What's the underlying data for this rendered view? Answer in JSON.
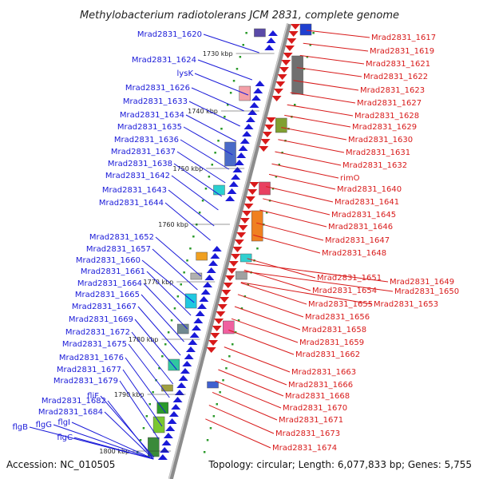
{
  "title": "Methylobacterium radiotolerans JCM 2831, complete genome",
  "footer": {
    "accession": "Accession: NC_010505",
    "stats": "Topology: circular; Length: 6,077,833 bp; Genes: 5,755"
  },
  "ticks": [
    "1730 kbp",
    "1740 kbp",
    "1750 kbp",
    "1760 kbp",
    "1770 kbp",
    "1780 kbp",
    "1790 kbp",
    "1800 kbp"
  ],
  "left_genes": [
    "Mrad2831_1620",
    "Mrad2831_1624",
    "lysK",
    "Mrad2831_1626",
    "Mrad2831_1633",
    "Mrad2831_1634",
    "Mrad2831_1635",
    "Mrad2831_1636",
    "Mrad2831_1637",
    "Mrad2831_1638",
    "Mrad2831_1642",
    "Mrad2831_1643",
    "Mrad2831_1644",
    "Mrad2831_1652",
    "Mrad2831_1657",
    "Mrad2831_1660",
    "Mrad2831_1661",
    "Mrad2831_1664",
    "Mrad2831_1665",
    "Mrad2831_1667",
    "Mrad2831_1669",
    "Mrad2831_1672",
    "Mrad2831_1675",
    "Mrad2831_1676",
    "Mrad2831_1677",
    "Mrad2831_1679",
    "Mrad2831_1682",
    "fliF",
    "Mrad2831_1684",
    "flgI",
    "flgG",
    "flgB",
    "flgC"
  ],
  "right_genes": [
    "Mrad2831_1617",
    "Mrad2831_1619",
    "Mrad2831_1621",
    "Mrad2831_1622",
    "Mrad2831_1623",
    "Mrad2831_1627",
    "Mrad2831_1628",
    "Mrad2831_1629",
    "Mrad2831_1630",
    "Mrad2831_1631",
    "Mrad2831_1632",
    "rimO",
    "Mrad2831_1640",
    "Mrad2831_1641",
    "Mrad2831_1645",
    "Mrad2831_1646",
    "Mrad2831_1647",
    "Mrad2831_1648",
    "Mrad2831_1649",
    "Mrad2831_1651",
    "Mrad2831_1650",
    "Mrad2831_1654",
    "Mrad2831_1655",
    "Mrad2831_1653",
    "Mrad2831_1656",
    "Mrad2831_1658",
    "Mrad2831_1659",
    "Mrad2831_1662",
    "Mrad2831_1663",
    "Mrad2831_1666",
    "Mrad2831_1668",
    "Mrad2831_1670",
    "Mrad2831_1671",
    "Mrad2831_1673",
    "Mrad2831_1674"
  ],
  "colors": {
    "forward": "#1a1ad8",
    "reverse": "#d81a1a",
    "backbone": "#8c8c8c",
    "dots": "#2a9a2a"
  }
}
